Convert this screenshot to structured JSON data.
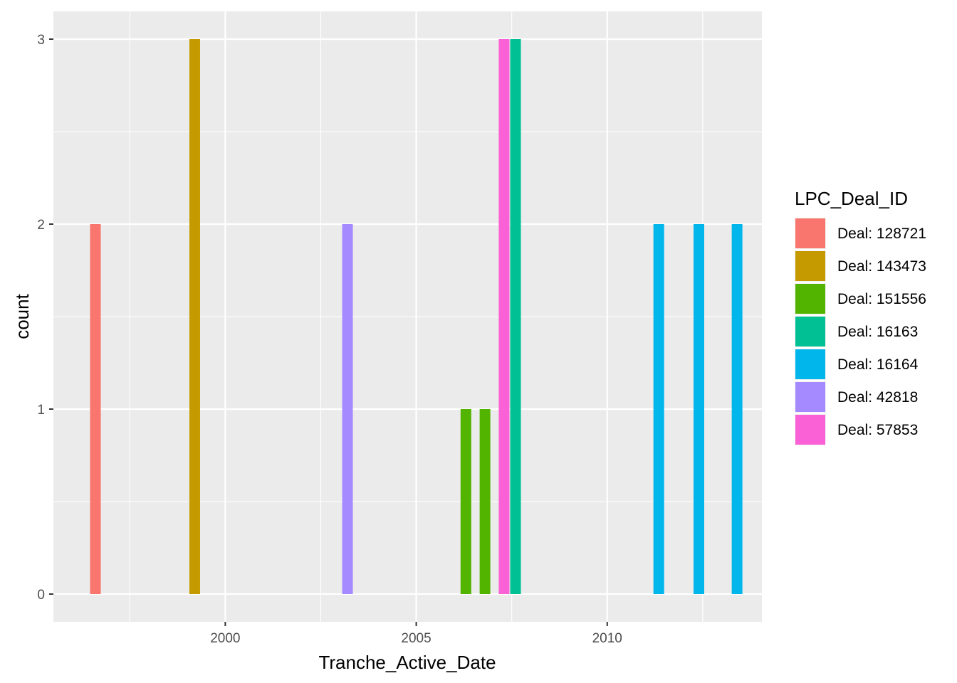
{
  "chart_data": {
    "type": "bar",
    "xlabel": "Tranche_Active_Date",
    "ylabel": "count",
    "x_tick_labels": [
      "2000",
      "2005",
      "2010"
    ],
    "x_ticks": [
      2000,
      2005,
      2010
    ],
    "y_tick_labels": [
      "0",
      "1",
      "2",
      "3"
    ],
    "y_ticks": [
      0,
      1,
      2,
      3
    ],
    "xlim": [
      1995.5,
      2014.05
    ],
    "ylim": [
      -0.15,
      3.15
    ],
    "grid": true,
    "legend": {
      "title": "LPC_Deal_ID",
      "position": "right",
      "entries": [
        {
          "label": "Deal: 128721",
          "color": "#F8766D"
        },
        {
          "label": "Deal: 143473",
          "color": "#C49A00"
        },
        {
          "label": "Deal: 151556",
          "color": "#53B400"
        },
        {
          "label": "Deal: 16163",
          "color": "#00C094"
        },
        {
          "label": "Deal: 16164",
          "color": "#00B6EB"
        },
        {
          "label": "Deal: 42818",
          "color": "#A58AFF"
        },
        {
          "label": "Deal: 57853",
          "color": "#FB61D7"
        }
      ]
    },
    "bars": [
      {
        "x": 1996.6,
        "count": 2,
        "series": "Deal: 128721"
      },
      {
        "x": 1999.2,
        "count": 3,
        "series": "Deal: 143473"
      },
      {
        "x": 2003.2,
        "count": 2,
        "series": "Deal: 42818"
      },
      {
        "x": 2006.3,
        "count": 1,
        "series": "Deal: 151556"
      },
      {
        "x": 2006.8,
        "count": 1,
        "series": "Deal: 151556"
      },
      {
        "x": 2007.3,
        "count": 3,
        "series": "Deal: 57853"
      },
      {
        "x": 2007.6,
        "count": 3,
        "series": "Deal: 16163"
      },
      {
        "x": 2011.35,
        "count": 2,
        "series": "Deal: 16164"
      },
      {
        "x": 2012.4,
        "count": 2,
        "series": "Deal: 16164"
      },
      {
        "x": 2013.4,
        "count": 2,
        "series": "Deal: 16164"
      }
    ]
  }
}
